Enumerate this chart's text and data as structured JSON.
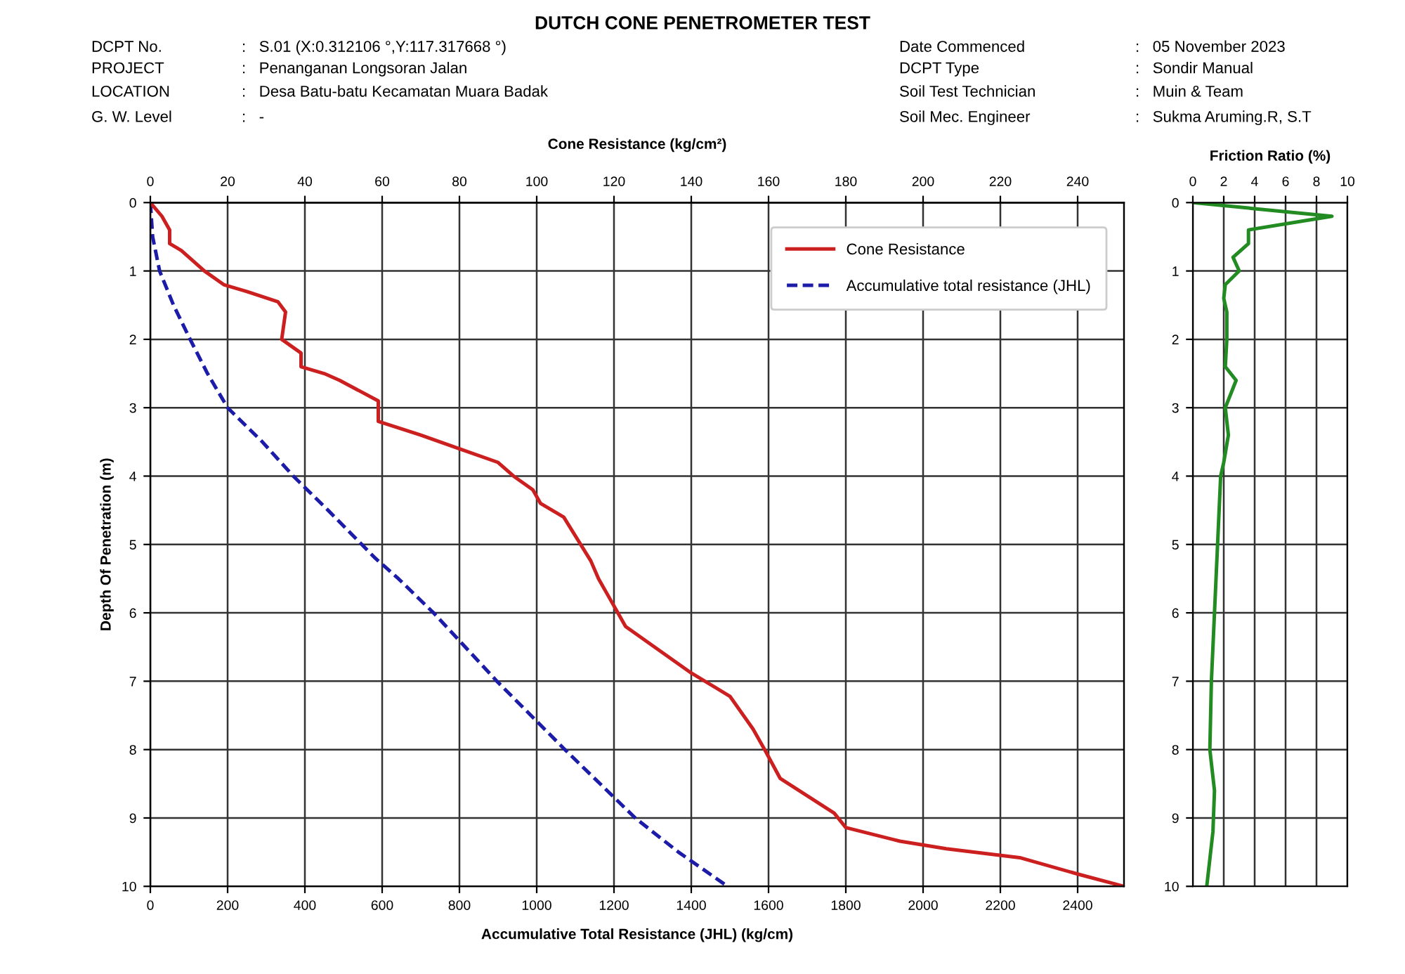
{
  "chart_data": [
    {
      "type": "line",
      "orientation": "horizontal",
      "title": "DUTCH CONE PENETROMETER TEST",
      "annotations": [
        "DCPT No.",
        ":   S.01 (X:0.312106 °,Y:117.317668 °)",
        "PROJECT",
        ":   Penanganan Longsoran Jalan",
        "LOCATION",
        ":   Desa Batu-batu Kecamatan Muara Badak",
        "G. W. Level",
        ":   -",
        "Date Commenced",
        ":   05 November 2023",
        "DCPT Type",
        ":   Sondir Manual",
        "Soil Test Technician",
        ":   Muin & Team",
        "Soil Mec. Engineer",
        ":   Sukma Aruming.R, S.T"
      ],
      "xlabel": "Accumulative Total Resistance (JHL) (kg/cm)",
      "x2label": "Cone Resistance (kg/cm²)",
      "ylabel": "Depth Of Penetration (m)",
      "xlim": [
        0,
        2520
      ],
      "xticks": [
        0,
        200,
        400,
        600,
        800,
        1000,
        1200,
        1400,
        1600,
        1800,
        2000,
        2200,
        2400
      ],
      "x2lim": [
        0,
        252
      ],
      "x2ticks": [
        0,
        20,
        40,
        60,
        80,
        100,
        120,
        140,
        160,
        180,
        200,
        220,
        240
      ],
      "ylim": [
        10,
        0
      ],
      "yticks": [
        0,
        1,
        2,
        3,
        4,
        5,
        6,
        7,
        8,
        9,
        10
      ],
      "grid": true,
      "legend": "top right",
      "marker": "none",
      "series": [
        {
          "name": "Cone Resistance",
          "color": "#cc2020",
          "axis": "x2",
          "line_style": "solid",
          "x": [
            0,
            0.2,
            0.4,
            0.6,
            0.7,
            1.0,
            1.2,
            1.3,
            1.45,
            1.6,
            2.0,
            2.2,
            2.4,
            2.5,
            2.6,
            2.9,
            3.0,
            3.2,
            3.4,
            3.6,
            3.8,
            4.0,
            4.2,
            4.4,
            4.6,
            5.24,
            5.5,
            5.8,
            6.0,
            6.2,
            6.88,
            7.22,
            7.7,
            8.0,
            8.42,
            8.93,
            9.14,
            9.34,
            9.45,
            9.58,
            9.82,
            10.0
          ],
          "values": [
            0,
            3,
            5,
            5,
            8,
            14,
            19,
            25,
            33,
            35,
            34,
            39,
            39,
            45,
            49,
            59,
            59,
            59,
            70,
            80,
            90,
            94,
            99,
            101,
            107,
            114,
            116,
            119,
            121,
            123,
            140,
            150,
            156,
            159,
            163,
            177,
            180,
            194,
            206,
            225,
            240,
            252
          ]
        },
        {
          "name": "Accumulative total resistance (JHL)",
          "color": "#1c1ca8",
          "line_style": "dashed",
          "x": [
            0,
            0.5,
            1.0,
            1.5,
            2.0,
            2.5,
            3.0,
            3.5,
            4.0,
            4.5,
            5.2,
            5.5,
            6.0,
            7.0,
            8.0,
            9.0,
            9.5,
            10.0
          ],
          "values": [
            0,
            6,
            24,
            60,
            103,
            148,
            200,
            290,
            370,
            460,
            582,
            642,
            733,
            897,
            1073,
            1255,
            1367,
            1494
          ]
        }
      ]
    },
    {
      "type": "line",
      "orientation": "horizontal",
      "xlabel": "Friction Ratio (%)",
      "xlim": [
        0,
        10
      ],
      "xticks": [
        0,
        2,
        4,
        6,
        8,
        10
      ],
      "ylim": [
        10,
        0
      ],
      "yticks": [
        0,
        1,
        2,
        3,
        4,
        5,
        6,
        7,
        8,
        9,
        10
      ],
      "grid": true,
      "marker": "none",
      "series": [
        {
          "color": "#228b22",
          "line_style": "solid",
          "x": [
            0,
            0.2,
            0.4,
            0.6,
            0.8,
            1.0,
            1.2,
            1.4,
            1.6,
            2.0,
            2.4,
            2.6,
            3.0,
            3.4,
            3.8,
            4.0,
            5.0,
            6.0,
            7.0,
            8.0,
            8.6,
            9.2,
            10.0
          ],
          "values": [
            0,
            9.0,
            3.6,
            3.6,
            2.6,
            3.0,
            2.1,
            2.0,
            2.2,
            2.2,
            2.1,
            2.8,
            2.1,
            2.3,
            2.0,
            1.8,
            1.6,
            1.4,
            1.2,
            1.1,
            1.4,
            1.3,
            0.9
          ]
        }
      ]
    }
  ]
}
